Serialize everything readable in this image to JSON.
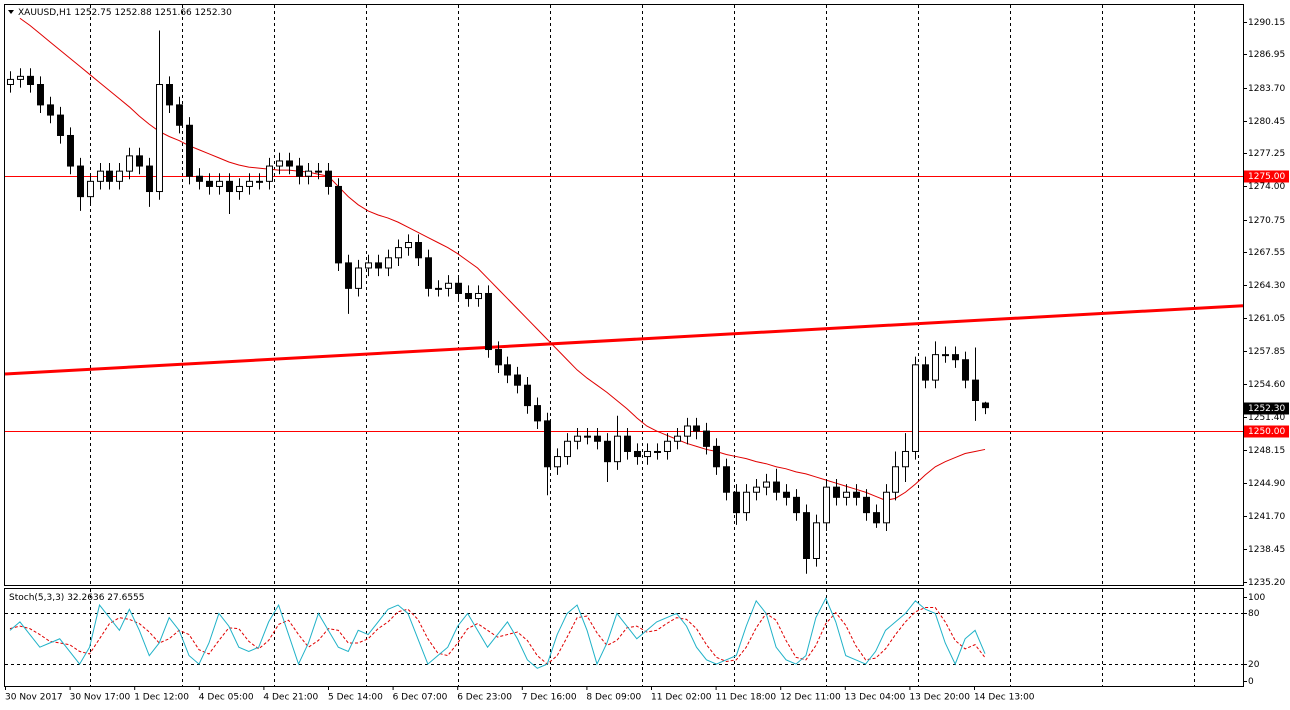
{
  "chart_data": {
    "type": "candlestick",
    "symbol": "XAUUSD,H1",
    "ohlc_text": [
      "1252.75",
      "1252.88",
      "1251.66",
      "1252.30"
    ],
    "open": [
      1284.0,
      1284.5,
      1284.8,
      1284.0,
      1282.0,
      1281.0,
      1279.0,
      1276.0,
      1273.0,
      1274.5,
      1275.5,
      1274.5,
      1275.5,
      1277.0,
      1276.0,
      1273.5,
      1284.0,
      1282.0,
      1280.0,
      1275.0,
      1274.5,
      1274.0,
      1274.5,
      1273.5,
      1274.0,
      1274.5,
      1274.5,
      1276.0,
      1276.5,
      1276.0,
      1275.0,
      1275.5,
      1275.5,
      1274.0,
      1266.5,
      1264.0,
      1266.0,
      1266.5,
      1266.0,
      1267.0,
      1268.0,
      1268.5,
      1267.0,
      1264.0,
      1264.0,
      1264.5,
      1263.5,
      1263.0,
      1263.5,
      1258.0,
      1256.5,
      1255.5,
      1254.5,
      1252.5,
      1251.0,
      1246.5,
      1247.5,
      1249.0,
      1249.5,
      1249.5,
      1249.0,
      1247.0,
      1249.5,
      1248.0,
      1247.5,
      1248.0,
      1248.0,
      1249.0,
      1249.5,
      1250.5,
      1250.0,
      1248.5,
      1246.5,
      1244.0,
      1242.0,
      1244.0,
      1244.5,
      1245.0,
      1244.0,
      1243.5,
      1242.0,
      1237.5,
      1241.0,
      1244.5,
      1243.5,
      1244.0,
      1243.5,
      1242.0,
      1241.0,
      1244.0,
      1246.5,
      1248.0,
      1256.5,
      1255.0,
      1257.5,
      1257.5,
      1257.0,
      1255.0,
      1252.75
    ],
    "high": [
      1285.3,
      1285.6,
      1285.6,
      1284.8,
      1282.8,
      1281.8,
      1279.8,
      1276.8,
      1275.3,
      1276.3,
      1276.3,
      1276.3,
      1277.8,
      1277.8,
      1276.8,
      1289.3,
      1284.8,
      1282.8,
      1280.8,
      1275.8,
      1275.3,
      1275.3,
      1275.3,
      1274.8,
      1275.3,
      1275.3,
      1276.8,
      1277.3,
      1277.3,
      1276.8,
      1276.3,
      1276.3,
      1276.3,
      1274.8,
      1267.3,
      1266.8,
      1267.3,
      1267.3,
      1267.8,
      1268.8,
      1269.3,
      1269.3,
      1267.8,
      1264.8,
      1265.3,
      1265.3,
      1264.3,
      1264.3,
      1264.3,
      1258.8,
      1257.3,
      1256.3,
      1255.3,
      1253.3,
      1251.8,
      1248.3,
      1249.8,
      1250.3,
      1250.3,
      1250.3,
      1249.8,
      1251.5,
      1250.3,
      1248.8,
      1248.8,
      1248.8,
      1249.8,
      1250.3,
      1251.3,
      1251.3,
      1250.8,
      1249.3,
      1247.3,
      1244.8,
      1244.8,
      1245.3,
      1245.8,
      1246.3,
      1244.8,
      1244.3,
      1242.8,
      1241.8,
      1245.3,
      1245.3,
      1244.8,
      1244.8,
      1244.3,
      1242.8,
      1244.8,
      1248.0,
      1249.8,
      1257.3,
      1257.3,
      1258.8,
      1258.3,
      1258.3,
      1257.8,
      1258.2,
      1252.88
    ],
    "low": [
      1283.2,
      1283.7,
      1283.2,
      1281.2,
      1280.2,
      1278.2,
      1275.2,
      1271.6,
      1272.2,
      1273.7,
      1273.7,
      1273.7,
      1274.7,
      1275.2,
      1272.0,
      1272.7,
      1281.2,
      1279.2,
      1274.2,
      1273.7,
      1273.2,
      1273.2,
      1271.3,
      1272.7,
      1273.2,
      1273.7,
      1273.7,
      1275.2,
      1275.2,
      1274.2,
      1274.2,
      1274.7,
      1273.2,
      1265.7,
      1261.5,
      1263.2,
      1265.2,
      1265.2,
      1265.2,
      1266.2,
      1267.2,
      1266.2,
      1263.2,
      1263.2,
      1263.2,
      1262.7,
      1262.2,
      1262.2,
      1257.2,
      1255.7,
      1254.7,
      1253.7,
      1251.7,
      1250.2,
      1243.7,
      1245.7,
      1246.7,
      1248.2,
      1248.7,
      1248.2,
      1245.0,
      1246.2,
      1247.2,
      1246.7,
      1246.7,
      1247.2,
      1247.2,
      1248.2,
      1248.7,
      1249.2,
      1247.7,
      1245.7,
      1243.2,
      1240.8,
      1241.2,
      1243.2,
      1243.7,
      1243.2,
      1242.7,
      1241.2,
      1236.0,
      1236.7,
      1240.2,
      1242.7,
      1242.7,
      1242.7,
      1241.2,
      1240.5,
      1240.2,
      1243.2,
      1245.0,
      1247.2,
      1254.2,
      1254.2,
      1256.7,
      1256.2,
      1254.2,
      1251.0,
      1251.66
    ],
    "close": [
      1284.5,
      1284.8,
      1284.0,
      1282.0,
      1281.0,
      1279.0,
      1276.0,
      1273.0,
      1274.5,
      1275.5,
      1274.5,
      1275.5,
      1277.0,
      1276.0,
      1273.5,
      1284.0,
      1282.0,
      1280.0,
      1275.0,
      1274.5,
      1274.0,
      1274.5,
      1273.5,
      1274.0,
      1274.5,
      1274.5,
      1276.0,
      1276.5,
      1276.0,
      1275.0,
      1275.5,
      1275.5,
      1274.0,
      1266.5,
      1264.0,
      1266.0,
      1266.5,
      1266.0,
      1267.0,
      1268.0,
      1268.5,
      1267.0,
      1264.0,
      1264.0,
      1264.5,
      1263.5,
      1263.0,
      1263.5,
      1258.0,
      1256.5,
      1255.5,
      1254.5,
      1252.5,
      1251.0,
      1246.5,
      1247.5,
      1249.0,
      1249.5,
      1249.5,
      1249.0,
      1247.0,
      1249.5,
      1248.0,
      1247.5,
      1248.0,
      1248.0,
      1249.0,
      1249.5,
      1250.5,
      1250.0,
      1248.5,
      1246.5,
      1244.0,
      1242.0,
      1244.0,
      1244.5,
      1245.0,
      1244.0,
      1243.5,
      1242.0,
      1237.5,
      1241.0,
      1244.5,
      1243.5,
      1244.0,
      1243.5,
      1242.0,
      1241.0,
      1244.0,
      1246.5,
      1248.0,
      1256.5,
      1255.0,
      1257.5,
      1257.5,
      1257.0,
      1255.0,
      1253.0,
      1252.3
    ],
    "up_color": "#ffffff",
    "down_color": "#000000",
    "ma": {
      "color": "#e00000",
      "values": [
        null,
        1290.5,
        1289.8,
        1289.0,
        1288.2,
        1287.4,
        1286.6,
        1285.8,
        1285.0,
        1284.2,
        1283.4,
        1282.6,
        1281.8,
        1280.9,
        1280.1,
        1279.4,
        1278.9,
        1278.5,
        1278.0,
        1277.6,
        1277.2,
        1276.8,
        1276.4,
        1276.1,
        1275.9,
        1275.8,
        1275.7,
        1275.6,
        1275.6,
        1275.5,
        1275.4,
        1275.2,
        1275.0,
        1274.0,
        1273.0,
        1272.2,
        1271.6,
        1271.2,
        1270.9,
        1270.5,
        1270.0,
        1269.5,
        1269.0,
        1268.5,
        1268.0,
        1267.4,
        1266.7,
        1266.0,
        1265.0,
        1264.0,
        1263.0,
        1262.0,
        1261.0,
        1260.0,
        1259.0,
        1258.0,
        1257.0,
        1256.0,
        1255.2,
        1254.5,
        1253.8,
        1253.0,
        1252.2,
        1251.3,
        1250.5,
        1250.0,
        1249.6,
        1249.2,
        1248.8,
        1248.5,
        1248.2,
        1248.0,
        1247.7,
        1247.5,
        1247.3,
        1247.0,
        1246.8,
        1246.5,
        1246.3,
        1246.0,
        1245.8,
        1245.5,
        1245.2,
        1244.9,
        1244.6,
        1244.3,
        1244.0,
        1243.6,
        1243.2,
        1243.4,
        1244.0,
        1244.8,
        1245.7,
        1246.5,
        1247.0,
        1247.4,
        1247.8,
        1248.0,
        1248.2
      ]
    },
    "hlines": [
      {
        "value": 1275,
        "label": "1275.00"
      },
      {
        "value": 1250,
        "label": "1250.00"
      }
    ],
    "hline_color": "#ff0000",
    "trendline": {
      "start": 1255.6,
      "end": 1262.3,
      "color": "#ff0000"
    },
    "last_price": {
      "value": 1252.3,
      "label": "1252.30"
    },
    "ylim": [
      1234.9,
      1291.8
    ],
    "yticks": [
      1290.15,
      1286.95,
      {
        "value": 1283.7,
        "label": "1283.70"
      },
      1280.45,
      1277.25,
      {
        "value": 1274,
        "label": "1274.00"
      },
      1270.75,
      1267.55,
      {
        "value": 1264.3,
        "label": "1264.30"
      },
      1261.05,
      1257.85,
      {
        "value": 1254.6,
        "label": "1254.60"
      },
      {
        "value": 1251.4,
        "label": "1251.40"
      },
      1248.15,
      {
        "value": 1244.9,
        "label": "1244.90"
      },
      {
        "value": 1241.7,
        "label": "1241.70"
      },
      1238.45,
      {
        "value": 1235.2,
        "label": "1235.20"
      }
    ],
    "x_labels": [
      "30 Nov 2017",
      "30 Nov 17:00",
      "1 Dec 12:00",
      "4 Dec 05:00",
      "4 Dec 21:00",
      "5 Dec 14:00",
      "6 Dec 07:00",
      "6 Dec 23:00",
      "7 Dec 16:00",
      "8 Dec 09:00",
      "11 Dec 02:00",
      "11 Dec 18:00",
      "12 Dec 11:00",
      "13 Dec 04:00",
      "13 Dec 20:00",
      "14 Dec 13:00"
    ],
    "stochastic": {
      "header": [
        "Stoch(5,3,3)",
        "32.2636",
        "27.6555"
      ],
      "ylim": [
        -6,
        109
      ],
      "yticks": [
        0,
        20,
        80,
        100
      ],
      "levels": [
        20,
        80
      ],
      "k": {
        "color": "#20b2c8",
        "values": [
          60,
          70,
          55,
          40,
          45,
          50,
          35,
          20,
          40,
          90,
          75,
          60,
          85,
          60,
          30,
          45,
          75,
          60,
          30,
          20,
          45,
          80,
          65,
          40,
          35,
          40,
          70,
          90,
          55,
          20,
          45,
          80,
          60,
          40,
          35,
          60,
          55,
          70,
          85,
          90,
          80,
          50,
          20,
          30,
          40,
          65,
          80,
          60,
          40,
          55,
          70,
          50,
          25,
          15,
          20,
          55,
          80,
          90,
          60,
          20,
          45,
          80,
          65,
          50,
          60,
          70,
          75,
          80,
          65,
          40,
          25,
          20,
          25,
          30,
          65,
          95,
          80,
          40,
          25,
          20,
          30,
          75,
          98,
          70,
          30,
          25,
          20,
          35,
          60,
          70,
          80,
          95,
          85,
          80,
          45,
          20,
          50,
          60,
          32.2636
        ]
      },
      "d": {
        "color": "#e00000",
        "values": [
          62,
          65,
          62,
          55,
          47,
          45,
          43,
          35,
          32,
          50,
          68,
          75,
          73,
          68,
          58,
          45,
          50,
          60,
          55,
          37,
          32,
          48,
          63,
          62,
          47,
          38,
          48,
          67,
          72,
          55,
          40,
          48,
          62,
          60,
          45,
          45,
          50,
          62,
          70,
          82,
          85,
          73,
          50,
          33,
          30,
          45,
          62,
          68,
          60,
          52,
          55,
          58,
          48,
          30,
          20,
          30,
          52,
          75,
          77,
          57,
          42,
          48,
          63,
          65,
          58,
          60,
          68,
          75,
          73,
          62,
          43,
          28,
          23,
          25,
          40,
          63,
          80,
          72,
          48,
          28,
          25,
          42,
          68,
          81,
          66,
          42,
          25,
          27,
          38,
          55,
          70,
          82,
          87,
          87,
          70,
          48,
          38,
          43,
          27.6555
        ]
      }
    }
  }
}
